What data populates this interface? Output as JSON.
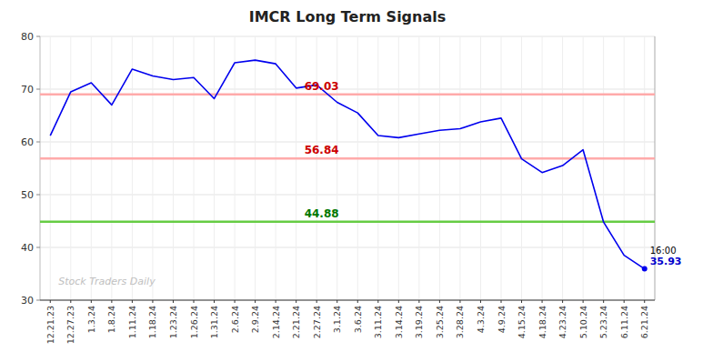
{
  "chart_data": {
    "type": "line",
    "title": "IMCR Long Term Signals",
    "watermark": "Stock Traders Daily",
    "categories": [
      "12.21.23",
      "12.27.23",
      "1.3.24",
      "1.8.24",
      "1.11.24",
      "1.18.24",
      "1.23.24",
      "1.26.24",
      "1.31.24",
      "2.6.24",
      "2.9.24",
      "2.14.24",
      "2.21.24",
      "2.27.24",
      "3.1.24",
      "3.6.24",
      "3.11.24",
      "3.14.24",
      "3.19.24",
      "3.25.24",
      "3.28.24",
      "4.3.24",
      "4.9.24",
      "4.15.24",
      "4.18.24",
      "4.23.24",
      "5.10.24",
      "5.23.24",
      "6.11.24",
      "6.21.24"
    ],
    "values": [
      61.2,
      69.5,
      71.2,
      67.0,
      73.8,
      72.5,
      71.8,
      72.2,
      68.2,
      75.0,
      75.5,
      74.8,
      70.2,
      70.8,
      67.5,
      65.5,
      61.2,
      60.8,
      61.5,
      62.2,
      62.5,
      63.8,
      64.5,
      56.8,
      54.2,
      55.5,
      58.5,
      44.8,
      38.5,
      35.93
    ],
    "color": "#0000ee",
    "reference_lines": [
      {
        "value": 69.03,
        "label": "69.03",
        "color": "#ffaaaa",
        "label_color": "#cc0000"
      },
      {
        "value": 56.84,
        "label": "56.84",
        "color": "#ffaaaa",
        "label_color": "#cc0000"
      },
      {
        "value": 44.88,
        "label": "44.88",
        "color": "#66cc44",
        "label_color": "#007700"
      }
    ],
    "last_point": {
      "label": "16:00",
      "value_label": "35.93",
      "value_label_color": "#0000cc"
    },
    "ylim": [
      30,
      80
    ],
    "yticks": [
      30,
      40,
      50,
      60,
      70,
      80
    ],
    "grid": true
  }
}
